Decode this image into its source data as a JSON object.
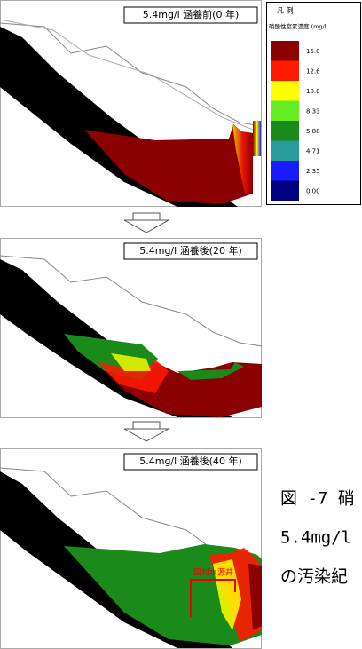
{
  "panels": [
    {
      "label": "5.4mg/l 涵養前(0 年)"
    },
    {
      "label": "5.4mg/l 涵養後(20 年)"
    },
    {
      "label": "5.4mg/l 涵養後(40 年)"
    }
  ],
  "legend": {
    "title": "凡 例",
    "subtitle": "硝酸性窒素濃度 (mg/l",
    "items": [
      {
        "label": "15.0",
        "color": "#8b0000"
      },
      {
        "label": "12.6",
        "color": "#ff1a00"
      },
      {
        "label": "10.0",
        "color": "#ffff00"
      },
      {
        "label": "8.33",
        "color": "#66ee22"
      },
      {
        "label": "5.88",
        "color": "#1a8a1a"
      },
      {
        "label": "4.71",
        "color": "#2a9a9a"
      },
      {
        "label": "2.35",
        "color": "#1a1aff"
      },
      {
        "label": "0.00",
        "color": "#000080"
      }
    ]
  },
  "annotation": "回村水源井",
  "caption": [
    "図 -7 硝",
    "5.4mg/l",
    "の汚染紀"
  ]
}
